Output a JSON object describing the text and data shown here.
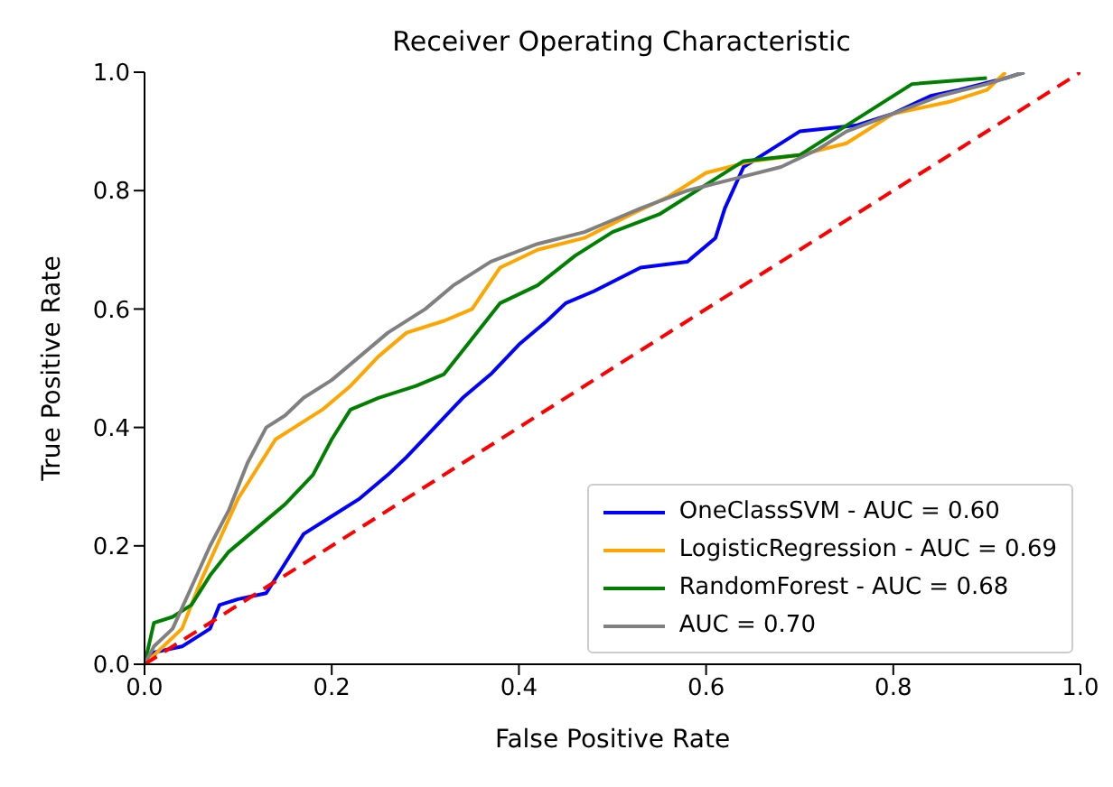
{
  "chart_data": {
    "type": "line",
    "title": "Receiver Operating Characteristic",
    "xlabel": "False Positive Rate",
    "ylabel": "True Positive Rate",
    "xlim": [
      0,
      1
    ],
    "ylim": [
      0,
      1
    ],
    "xticks": [
      {
        "value": 0,
        "label": "0.0"
      },
      {
        "value": 0.2,
        "label": "0.2"
      },
      {
        "value": 0.4,
        "label": "0.4"
      },
      {
        "value": 0.6,
        "label": "0.6"
      },
      {
        "value": 0.8,
        "label": "0.8"
      },
      {
        "value": 1,
        "label": "1.0"
      }
    ],
    "yticks": [
      {
        "value": 0,
        "label": "0.0"
      },
      {
        "value": 0.2,
        "label": "0.2"
      },
      {
        "value": 0.4,
        "label": "0.4"
      },
      {
        "value": 0.6,
        "label": "0.6"
      },
      {
        "value": 0.8,
        "label": "0.8"
      },
      {
        "value": 1,
        "label": "1.0"
      }
    ],
    "grid": false,
    "legend": "bottom right",
    "marker": "none",
    "line_style": "solid",
    "series": [
      {
        "name": "OneClassSVM - AUC = 0.60",
        "color": "#0000ff",
        "x": [
          0,
          0.01,
          0.04,
          0.07,
          0.08,
          0.1,
          0.13,
          0.15,
          0.17,
          0.2,
          0.23,
          0.26,
          0.28,
          0.31,
          0.34,
          0.37,
          0.4,
          0.43,
          0.45,
          0.48,
          0.53,
          0.58,
          0.61,
          0.62,
          0.64,
          0.66,
          0.7,
          0.76,
          0.8,
          0.84,
          0.87,
          0.92,
          0.94
        ],
        "values": [
          0,
          0.02,
          0.03,
          0.06,
          0.1,
          0.11,
          0.12,
          0.17,
          0.22,
          0.25,
          0.28,
          0.32,
          0.35,
          0.4,
          0.45,
          0.49,
          0.54,
          0.58,
          0.61,
          0.63,
          0.67,
          0.68,
          0.72,
          0.77,
          0.84,
          0.86,
          0.9,
          0.91,
          0.93,
          0.96,
          0.97,
          0.99,
          1
        ]
      },
      {
        "name": "LogisticRegression - AUC = 0.69",
        "color": "#ffa500",
        "x": [
          0,
          0.02,
          0.04,
          0.06,
          0.08,
          0.1,
          0.12,
          0.14,
          0.16,
          0.19,
          0.22,
          0.25,
          0.28,
          0.32,
          0.35,
          0.38,
          0.42,
          0.47,
          0.52,
          0.56,
          0.6,
          0.65,
          0.7,
          0.75,
          0.8,
          0.86,
          0.9,
          0.92
        ],
        "values": [
          0,
          0.03,
          0.06,
          0.14,
          0.21,
          0.28,
          0.33,
          0.38,
          0.4,
          0.43,
          0.47,
          0.52,
          0.56,
          0.58,
          0.6,
          0.67,
          0.7,
          0.72,
          0.76,
          0.79,
          0.83,
          0.85,
          0.86,
          0.88,
          0.93,
          0.95,
          0.97,
          1
        ]
      },
      {
        "name": "RandomForest - AUC = 0.68",
        "color": "#008000",
        "x": [
          0,
          0.01,
          0.03,
          0.05,
          0.07,
          0.09,
          0.12,
          0.15,
          0.18,
          0.2,
          0.22,
          0.25,
          0.29,
          0.32,
          0.35,
          0.38,
          0.42,
          0.46,
          0.5,
          0.55,
          0.6,
          0.64,
          0.7,
          0.74,
          0.78,
          0.82,
          0.9
        ],
        "values": [
          0,
          0.07,
          0.08,
          0.1,
          0.15,
          0.19,
          0.23,
          0.27,
          0.32,
          0.38,
          0.43,
          0.45,
          0.47,
          0.49,
          0.55,
          0.61,
          0.64,
          0.69,
          0.73,
          0.76,
          0.81,
          0.85,
          0.86,
          0.9,
          0.94,
          0.98,
          0.99
        ]
      },
      {
        "name": "AUC = 0.70",
        "color": "#808080",
        "x": [
          0,
          0.01,
          0.03,
          0.05,
          0.07,
          0.09,
          0.11,
          0.13,
          0.15,
          0.17,
          0.2,
          0.23,
          0.26,
          0.3,
          0.33,
          0.37,
          0.42,
          0.47,
          0.5,
          0.53,
          0.58,
          0.63,
          0.68,
          0.72,
          0.75,
          0.8,
          0.85,
          0.9,
          0.94
        ],
        "values": [
          0,
          0.03,
          0.06,
          0.13,
          0.2,
          0.26,
          0.34,
          0.4,
          0.42,
          0.45,
          0.48,
          0.52,
          0.56,
          0.6,
          0.64,
          0.68,
          0.71,
          0.73,
          0.75,
          0.77,
          0.8,
          0.82,
          0.84,
          0.87,
          0.9,
          0.93,
          0.96,
          0.98,
          1
        ]
      },
      {
        "color": "#ff0000",
        "line_style": "dashed",
        "x": [
          0,
          1
        ],
        "values": [
          0,
          1
        ]
      }
    ]
  }
}
